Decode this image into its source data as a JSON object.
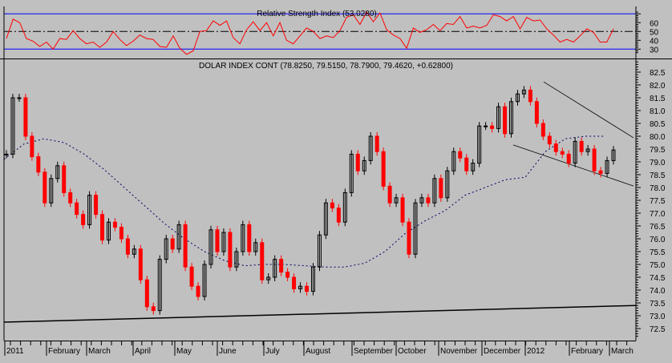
{
  "chart_data": [
    {
      "type": "line",
      "title": "Relative Strength Index (53.0280)",
      "ylim": [
        25,
        72
      ],
      "yticks": [
        60,
        50,
        40,
        30
      ],
      "reference_lines": [
        70,
        50,
        30
      ],
      "colors": {
        "series": "#ff0000",
        "bands": "#0000ff",
        "mid": "#000000"
      },
      "values": [
        42,
        64,
        60,
        42,
        39,
        33,
        38,
        30,
        42,
        41,
        51,
        42,
        36,
        38,
        32,
        38,
        50,
        41,
        34,
        39,
        46,
        42,
        41,
        33,
        32,
        45,
        31,
        24,
        28,
        50,
        51,
        62,
        57,
        62,
        43,
        36,
        52,
        61,
        51,
        60,
        45,
        60,
        40,
        36,
        45,
        54,
        50,
        42,
        45,
        43,
        51,
        66,
        69,
        58,
        72,
        61,
        71,
        52,
        46,
        42,
        31,
        54,
        49,
        52,
        58,
        51,
        59,
        58,
        67,
        54,
        56,
        54,
        57,
        69,
        67,
        62,
        67,
        53,
        66,
        62,
        63,
        53,
        46,
        38,
        41,
        38,
        45,
        53,
        49,
        38,
        38,
        53
      ]
    },
    {
      "type": "candlestick",
      "title": "DOLAR INDEX CONT (78.8250, 79.5150, 78.7900, 79.4620, +0.62800)",
      "ylim": [
        72.2,
        82.9
      ],
      "yticks": [
        82.5,
        82.0,
        81.5,
        81.0,
        80.5,
        80.0,
        79.5,
        79.0,
        78.5,
        78.0,
        77.5,
        77.0,
        76.5,
        76.0,
        75.5,
        75.0,
        74.5,
        74.0,
        73.5,
        73.0,
        72.5
      ],
      "x_labels": [
        "2011",
        "February",
        "March",
        "April",
        "May",
        "June",
        "July",
        "August",
        "September",
        "October",
        "November",
        "December",
        "2012",
        "February",
        "March"
      ],
      "colors": {
        "up": "#000000",
        "down": "#ff0000",
        "moving_average": "#000066",
        "trendline": "#000000"
      },
      "closes": [
        79.3,
        81.5,
        81.5,
        80.0,
        79.2,
        78.6,
        77.4,
        78.35,
        78.85,
        77.8,
        77.4,
        76.95,
        76.55,
        77.7,
        76.95,
        75.95,
        76.65,
        76.45,
        76.0,
        75.4,
        75.6,
        74.4,
        73.35,
        73.2,
        75.2,
        76.0,
        75.6,
        76.55,
        74.9,
        74.15,
        73.75,
        75.0,
        76.35,
        75.5,
        76.25,
        74.9,
        75.5,
        76.55,
        75.5,
        75.85,
        74.4,
        74.5,
        75.2,
        74.7,
        74.5,
        74.05,
        74.15,
        73.95,
        74.9,
        76.15,
        77.4,
        77.2,
        76.65,
        77.8,
        79.3,
        78.65,
        79.05,
        80.0,
        79.4,
        78.05,
        77.4,
        77.6,
        76.65,
        75.4,
        77.4,
        77.6,
        77.4,
        78.35,
        77.6,
        78.65,
        79.4,
        79.15,
        78.65,
        78.95,
        80.4,
        80.4,
        80.3,
        81.15,
        80.1,
        81.35,
        81.65,
        81.8,
        81.35,
        80.5,
        80.0,
        79.7,
        79.4,
        79.3,
        78.95,
        79.8,
        79.4,
        79.5,
        78.65,
        78.55,
        79.05,
        79.462
      ],
      "moving_average": [
        79.1,
        79.7,
        79.9,
        79.75,
        79.3,
        78.7,
        78.0,
        77.3,
        76.6,
        76.0,
        75.5,
        75.15,
        74.95,
        75.0,
        75.0,
        74.95,
        74.9,
        74.9,
        75.05,
        75.5,
        76.2,
        76.7,
        77.1,
        77.7,
        78.0,
        78.3,
        78.4,
        79.4,
        79.9,
        80.0,
        80.0
      ],
      "trendlines": [
        {
          "from": 72.75,
          "to": 73.4
        },
        {
          "from": 82.12,
          "to": 79.94
        },
        {
          "from": 79.66,
          "to": 78.06
        }
      ]
    }
  ]
}
